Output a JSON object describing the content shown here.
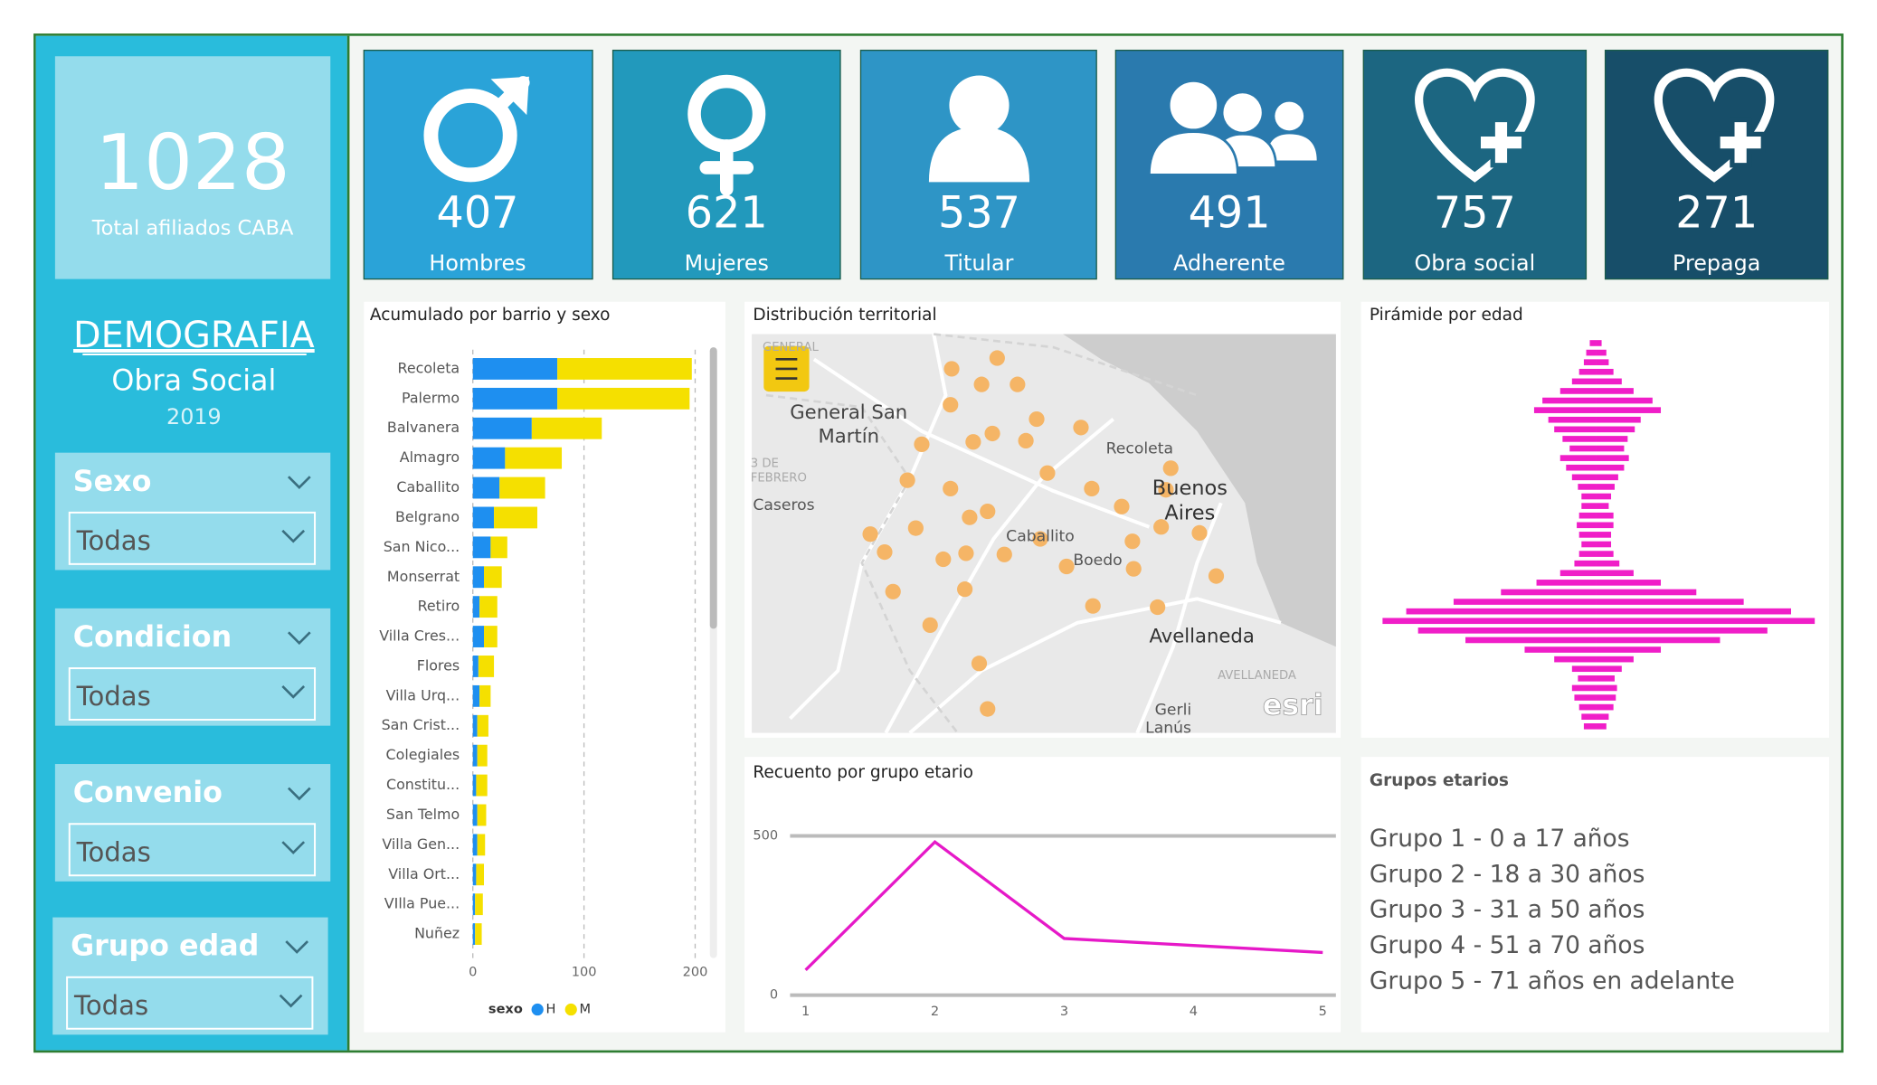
{
  "header": {
    "total": "1028",
    "total_label": "Total afiliados CABA",
    "title": "DEMOGRAFIA",
    "subtitle": "Obra Social",
    "year": "2019"
  },
  "kpis": [
    {
      "value": "407",
      "label": "Hombres"
    },
    {
      "value": "621",
      "label": "Mujeres"
    },
    {
      "value": "537",
      "label": "Titular"
    },
    {
      "value": "491",
      "label": "Adherente"
    },
    {
      "value": "757",
      "label": "Obra social"
    },
    {
      "value": "271",
      "label": "Prepaga"
    }
  ],
  "slicers": [
    {
      "title": "Sexo",
      "value": "Todas"
    },
    {
      "title": "Condicion",
      "value": "Todas"
    },
    {
      "title": "Convenio",
      "value": "Todas"
    },
    {
      "title": "Grupo edad",
      "value": "Todas"
    }
  ],
  "map": {
    "title": "Distribución territorial",
    "labels": [
      "GENERAL",
      "General San",
      "Martín",
      "3 DE",
      "FEBRERO",
      "Caseros",
      "Recoleta",
      "Buenos",
      "Aires",
      "Caballito",
      "Boedo",
      "Avellaneda",
      "AVELLANEDA",
      "Gerli",
      "Lanús",
      "esri"
    ]
  },
  "age_groups": {
    "title": "Grupos etarios",
    "items": [
      "Grupo 1 - 0 a 17 años",
      "Grupo 2 - 18 a 30 años",
      "Grupo 3 - 31 a 50 años",
      "Grupo 4 - 51 a 70 años",
      "Grupo 5 - 71 años en adelante"
    ]
  },
  "chart_data": [
    {
      "type": "bar",
      "orientation": "horizontal",
      "stacked": true,
      "title": "Acumulado por barrio y sexo",
      "categories": [
        "Recoleta",
        "Palermo",
        "Balvanera",
        "Almagro",
        "Caballito",
        "Belgrano",
        "San Nico...",
        "Monserrat",
        "Retiro",
        "Villa Cres...",
        "Flores",
        "Villa Urq...",
        "San Crist...",
        "Colegiales",
        "Constitu...",
        "San Telmo",
        "Villa Gen...",
        "Villa Ort...",
        "VIlla Pue...",
        "Nuñez"
      ],
      "series": [
        {
          "name": "H",
          "color": "#1e8ff0",
          "values": [
            76,
            76,
            53,
            29,
            24,
            19,
            16,
            10,
            6,
            10,
            5,
            6,
            4,
            4,
            3,
            4,
            4,
            3,
            2,
            2
          ]
        },
        {
          "name": "M",
          "color": "#f5e000",
          "values": [
            121,
            119,
            63,
            51,
            41,
            39,
            15,
            16,
            16,
            12,
            14,
            10,
            10,
            9,
            10,
            8,
            7,
            7,
            7,
            6
          ]
        }
      ],
      "xlim": [
        0,
        210
      ],
      "xticks": [
        0,
        100,
        200
      ],
      "grid": true,
      "legend_title": "sexo"
    },
    {
      "type": "pyramid",
      "title": "Pirámide por edad",
      "series": [
        {
          "color": "#f01ec8",
          "values": [
            5,
            8,
            10,
            14,
            20,
            30,
            45,
            52,
            40,
            35,
            28,
            22,
            30,
            25,
            20,
            15,
            12,
            12,
            14,
            16,
            14,
            12,
            14,
            18,
            30,
            50,
            80,
            120,
            160,
            180,
            150,
            110,
            60,
            35,
            20,
            15,
            20,
            18,
            14,
            12,
            10
          ]
        },
        {
          "color": "#f01ec8",
          "values": [
            5,
            9,
            11,
            15,
            22,
            32,
            48,
            55,
            38,
            33,
            27,
            24,
            28,
            24,
            19,
            16,
            13,
            11,
            15,
            15,
            13,
            13,
            15,
            20,
            32,
            55,
            85,
            125,
            165,
            185,
            145,
            105,
            55,
            32,
            22,
            16,
            18,
            17,
            15,
            11,
            9
          ]
        }
      ]
    },
    {
      "type": "line",
      "title": "Recuento por grupo etario",
      "x": [
        1,
        2,
        3,
        4,
        5
      ],
      "values": [
        79,
        481,
        178,
        156,
        134
      ],
      "color": "#e619c8",
      "xlim": [
        1,
        5
      ],
      "ylim": [
        0,
        500
      ],
      "xticks": [
        1,
        2,
        3,
        4,
        5
      ],
      "yticks": [
        0,
        500
      ],
      "grid": true
    }
  ]
}
